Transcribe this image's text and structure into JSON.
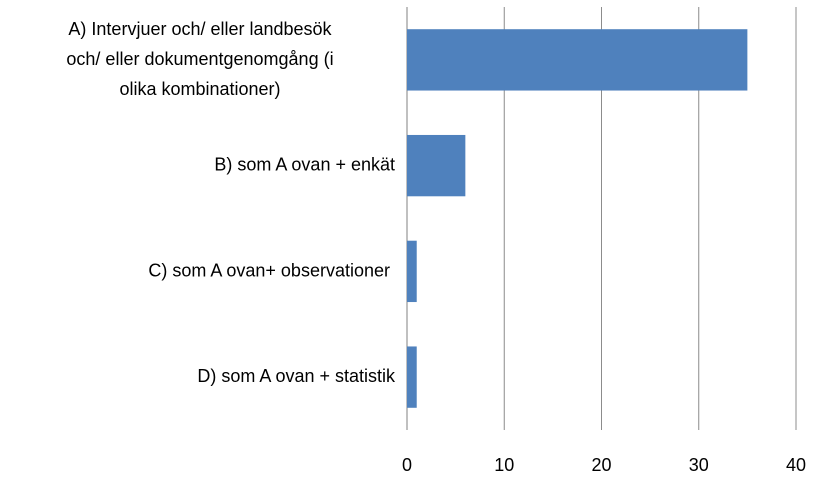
{
  "chart_data": {
    "type": "bar",
    "orientation": "horizontal",
    "categories": [
      "A) Intervjuer och/ eller landbesök\noch/ eller dokumentgenomgång (i\nolika kombinationer)",
      "B) som A ovan + enkät",
      "C) som A ovan+ observationer ",
      "D) som A ovan + statistik"
    ],
    "values": [
      35,
      6,
      1,
      1
    ],
    "color": "#4f81bd",
    "xlim": [
      0,
      40
    ],
    "xticks": [
      0,
      10,
      20,
      30,
      40
    ],
    "grid": true
  }
}
